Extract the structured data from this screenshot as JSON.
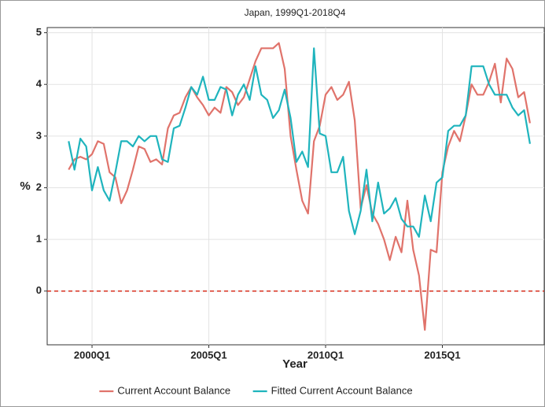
{
  "chart_data": {
    "type": "line",
    "title": "Japan, 1999Q1-2018Q4",
    "x_label": "Year",
    "y_label": "%",
    "x": [
      1999,
      1999.25,
      1999.5,
      1999.75,
      2000,
      2000.25,
      2000.5,
      2000.75,
      2001,
      2001.25,
      2001.5,
      2001.75,
      2002,
      2002.25,
      2002.5,
      2002.75,
      2003,
      2003.25,
      2003.5,
      2003.75,
      2004,
      2004.25,
      2004.5,
      2004.75,
      2005,
      2005.25,
      2005.5,
      2005.75,
      2006,
      2006.25,
      2006.5,
      2006.75,
      2007,
      2007.25,
      2007.5,
      2007.75,
      2008,
      2008.25,
      2008.5,
      2008.75,
      2009,
      2009.25,
      2009.5,
      2009.75,
      2010,
      2010.25,
      2010.5,
      2010.75,
      2011,
      2011.25,
      2011.5,
      2011.75,
      2012,
      2012.25,
      2012.5,
      2012.75,
      2013,
      2013.25,
      2013.5,
      2013.75,
      2014,
      2014.25,
      2014.5,
      2014.75,
      2015,
      2015.25,
      2015.5,
      2015.75,
      2016,
      2016.25,
      2016.5,
      2016.75,
      2017,
      2017.25,
      2017.5,
      2017.75,
      2018,
      2018.25,
      2018.5,
      2018.75
    ],
    "series": [
      {
        "name": "Current Account Balance",
        "color": "#e0736b",
        "values": [
          2.35,
          2.55,
          2.6,
          2.55,
          2.65,
          2.9,
          2.85,
          2.3,
          2.2,
          1.7,
          1.95,
          2.35,
          2.8,
          2.75,
          2.5,
          2.55,
          2.45,
          3.15,
          3.4,
          3.45,
          3.75,
          3.95,
          3.75,
          3.6,
          3.4,
          3.55,
          3.45,
          3.95,
          3.85,
          3.6,
          3.75,
          4.1,
          4.45,
          4.7,
          4.7,
          4.7,
          4.8,
          4.3,
          3.0,
          2.35,
          1.75,
          1.5,
          2.9,
          3.2,
          3.8,
          3.95,
          3.7,
          3.8,
          4.05,
          3.3,
          1.6,
          2.05,
          1.5,
          1.3,
          1.0,
          0.6,
          1.05,
          0.75,
          1.75,
          0.8,
          0.3,
          -0.75,
          0.8,
          0.75,
          2.3,
          2.8,
          3.1,
          2.9,
          3.4,
          4.0,
          3.8,
          3.8,
          4.05,
          4.4,
          3.65,
          4.5,
          4.3,
          3.75,
          3.85,
          3.25
        ]
      },
      {
        "name": "Fitted Current Account Balance",
        "color": "#1fb4bd",
        "values": [
          2.9,
          2.35,
          2.95,
          2.8,
          1.95,
          2.4,
          1.95,
          1.75,
          2.3,
          2.9,
          2.9,
          2.8,
          3.0,
          2.9,
          3.0,
          3.0,
          2.55,
          2.5,
          3.15,
          3.2,
          3.55,
          3.95,
          3.8,
          4.15,
          3.7,
          3.7,
          3.95,
          3.9,
          3.4,
          3.8,
          4.0,
          3.7,
          4.35,
          3.8,
          3.7,
          3.35,
          3.5,
          3.9,
          3.35,
          2.5,
          2.7,
          2.4,
          4.7,
          3.05,
          3.0,
          2.3,
          2.3,
          2.6,
          1.55,
          1.1,
          1.55,
          2.35,
          1.35,
          2.1,
          1.5,
          1.6,
          1.8,
          1.4,
          1.25,
          1.25,
          1.05,
          1.85,
          1.35,
          2.1,
          2.2,
          3.1,
          3.2,
          3.2,
          3.4,
          4.35,
          4.35,
          4.35,
          4.0,
          3.8,
          3.8,
          3.8,
          3.55,
          3.4,
          3.5,
          2.85
        ]
      }
    ],
    "xlim": [
      1998.08,
      2019.36
    ],
    "xticks": [
      {
        "value": 2000,
        "label": "2000Q1"
      },
      {
        "value": 2005,
        "label": "2005Q1"
      },
      {
        "value": 2010,
        "label": "2010Q1"
      },
      {
        "value": 2015,
        "label": "2015Q1"
      }
    ],
    "ylim": [
      -1.04,
      5.1
    ],
    "yticks": [
      0,
      1,
      2,
      3,
      4,
      5
    ],
    "hline": {
      "value": 0,
      "color": "#d7301f"
    },
    "grid": true,
    "legend": "bottom"
  }
}
